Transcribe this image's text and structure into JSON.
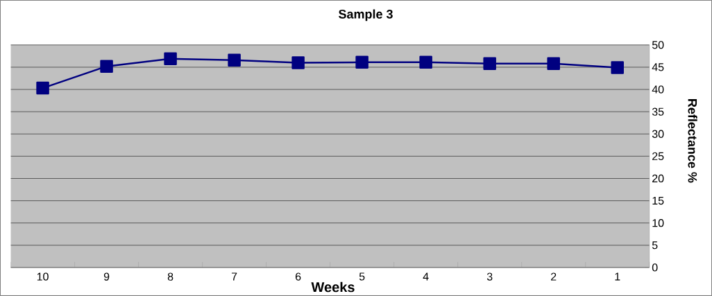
{
  "chart_data": {
    "type": "line",
    "title": "Sample 3",
    "xlabel": "Weeks",
    "ylabel": "Reflectance %",
    "categories": [
      "10",
      "9",
      "8",
      "7",
      "6",
      "5",
      "4",
      "3",
      "2",
      "1"
    ],
    "series": [
      {
        "color": "#000080",
        "values": [
          40.3,
          45.2,
          46.9,
          46.6,
          46.0,
          46.1,
          46.1,
          45.8,
          45.8,
          44.9
        ]
      }
    ],
    "ylim": [
      0,
      50
    ],
    "yticks": [
      0,
      5,
      10,
      15,
      20,
      25,
      30,
      35,
      40,
      45,
      50
    ],
    "grid": "y",
    "marker": "square",
    "line_style": "solid",
    "legend": false
  }
}
